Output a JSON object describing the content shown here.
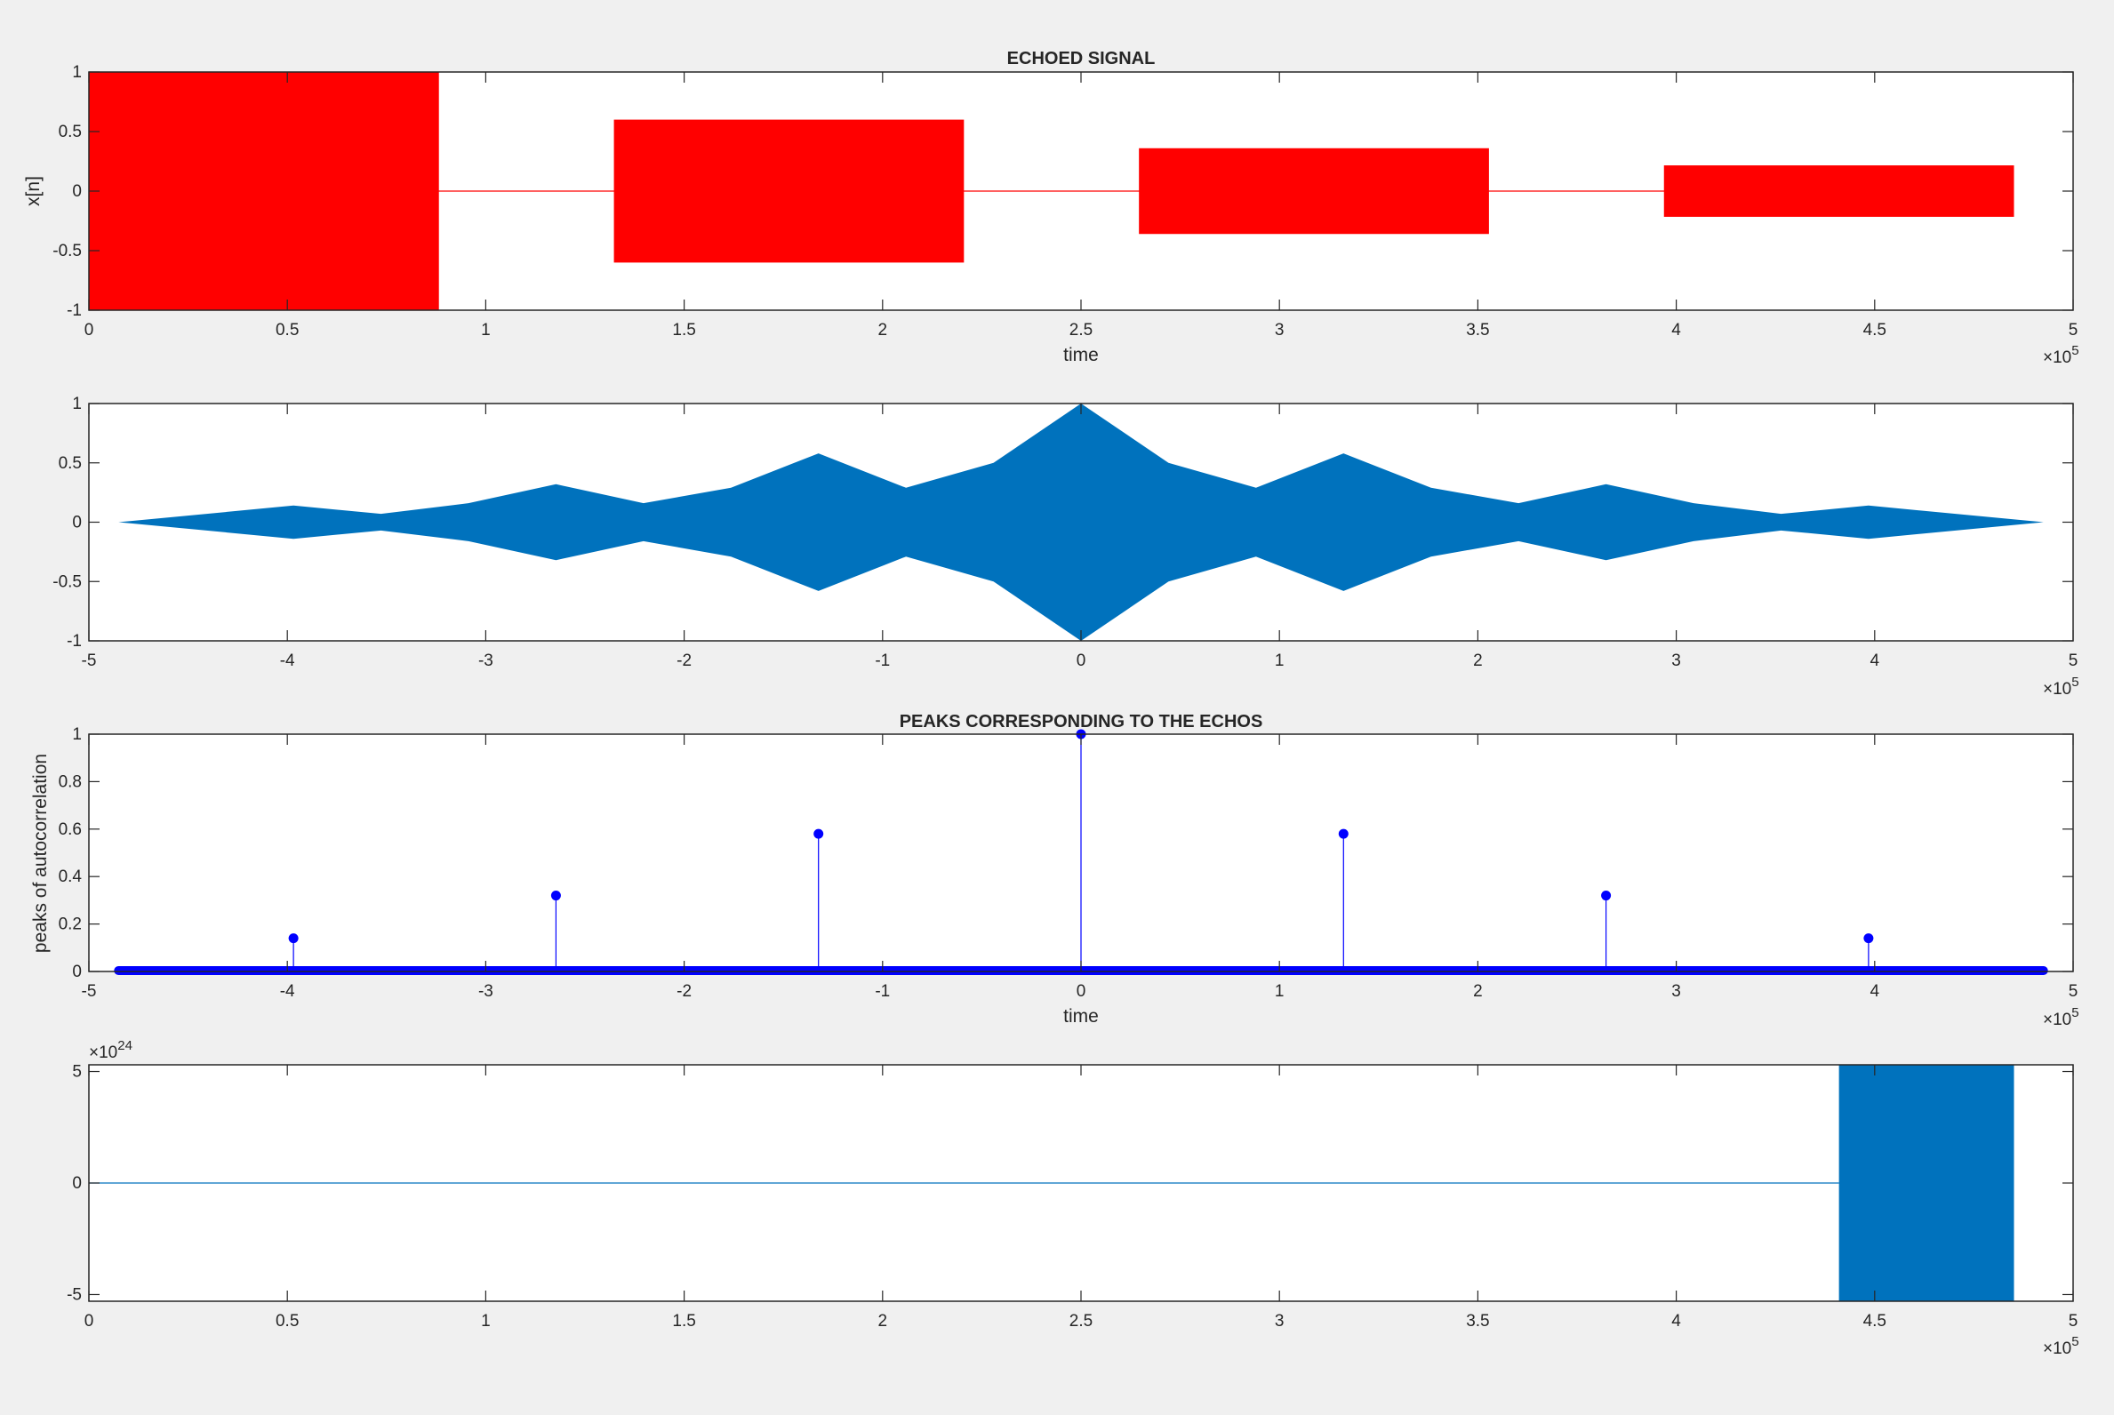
{
  "chart_data": [
    {
      "type": "area",
      "title": "ECHOED SIGNAL",
      "xlabel": "time",
      "ylabel": "x[n]",
      "xlim": [
        0,
        500000
      ],
      "ylim": [
        -1,
        1
      ],
      "x_exponent": "5",
      "xticks": [
        "0",
        "0.5",
        "1",
        "1.5",
        "2",
        "2.5",
        "3",
        "3.5",
        "4",
        "4.5",
        "5"
      ],
      "yticks": [
        "-1",
        "-0.5",
        "0",
        "0.5",
        "1"
      ],
      "color": "#ff0000",
      "baseline": {
        "x": [
          0,
          484000
        ],
        "y": 0
      },
      "bursts": [
        {
          "x_start": 0,
          "x_end": 88200,
          "amplitude": 1.0
        },
        {
          "x_start": 132300,
          "x_end": 220500,
          "amplitude": 0.6
        },
        {
          "x_start": 264600,
          "x_end": 352800,
          "amplitude": 0.36
        },
        {
          "x_start": 396900,
          "x_end": 485100,
          "amplitude": 0.216
        }
      ]
    },
    {
      "type": "area",
      "title": "",
      "xlabel": "",
      "ylabel": "",
      "xlim": [
        -500000,
        500000
      ],
      "ylim": [
        -1,
        1
      ],
      "x_exponent": "5",
      "xticks": [
        "-5",
        "-4",
        "-3",
        "-2",
        "-1",
        "0",
        "1",
        "2",
        "3",
        "4",
        "5"
      ],
      "yticks": [
        "-1",
        "-0.5",
        "0",
        "0.5",
        "1"
      ],
      "color": "#0072bd",
      "envelope": {
        "x": [
          -485100,
          -396900,
          -352800,
          -308700,
          -264600,
          -220500,
          -176400,
          -132300,
          -88200,
          -44100,
          0,
          44100,
          88200,
          132300,
          176400,
          220500,
          264600,
          308700,
          352800,
          396900,
          485100
        ],
        "y": [
          0,
          0.14,
          0.07,
          0.16,
          0.32,
          0.16,
          0.29,
          0.58,
          0.29,
          0.5,
          1.0,
          0.5,
          0.29,
          0.58,
          0.29,
          0.16,
          0.32,
          0.16,
          0.07,
          0.14,
          0
        ]
      }
    },
    {
      "type": "stem",
      "title": "PEAKS CORRESPONDING TO THE ECHOS",
      "xlabel": "time",
      "ylabel": "peaks of autocorrelation",
      "xlim": [
        -500000,
        500000
      ],
      "ylim": [
        0,
        1
      ],
      "x_exponent": "5",
      "xticks": [
        "-5",
        "-4",
        "-3",
        "-2",
        "-1",
        "0",
        "1",
        "2",
        "3",
        "4",
        "5"
      ],
      "yticks": [
        "0",
        "0.2",
        "0.4",
        "0.6",
        "0.8",
        "1"
      ],
      "color": "#0000ff",
      "baseline_range": [
        -485100,
        485100
      ],
      "x": [
        -396900,
        -264600,
        -132300,
        0,
        132300,
        264600,
        396900
      ],
      "y": [
        0.14,
        0.32,
        0.58,
        1.0,
        0.58,
        0.32,
        0.14
      ]
    },
    {
      "type": "area",
      "title": "",
      "xlabel": "",
      "ylabel": "",
      "xlim": [
        0,
        500000
      ],
      "ylim": [
        -5.3,
        5.3
      ],
      "x_exponent": "5",
      "y_exponent": "24",
      "xticks": [
        "0",
        "0.5",
        "1",
        "1.5",
        "2",
        "2.5",
        "3",
        "3.5",
        "4",
        "4.5",
        "5"
      ],
      "yticks": [
        "-5",
        "0",
        "5"
      ],
      "color": "#0072bd",
      "baseline": {
        "x": [
          0,
          441000
        ],
        "y": 0
      },
      "bursts": [
        {
          "x_start": 441000,
          "x_end": 485100,
          "amplitude": 5.3
        }
      ]
    }
  ]
}
